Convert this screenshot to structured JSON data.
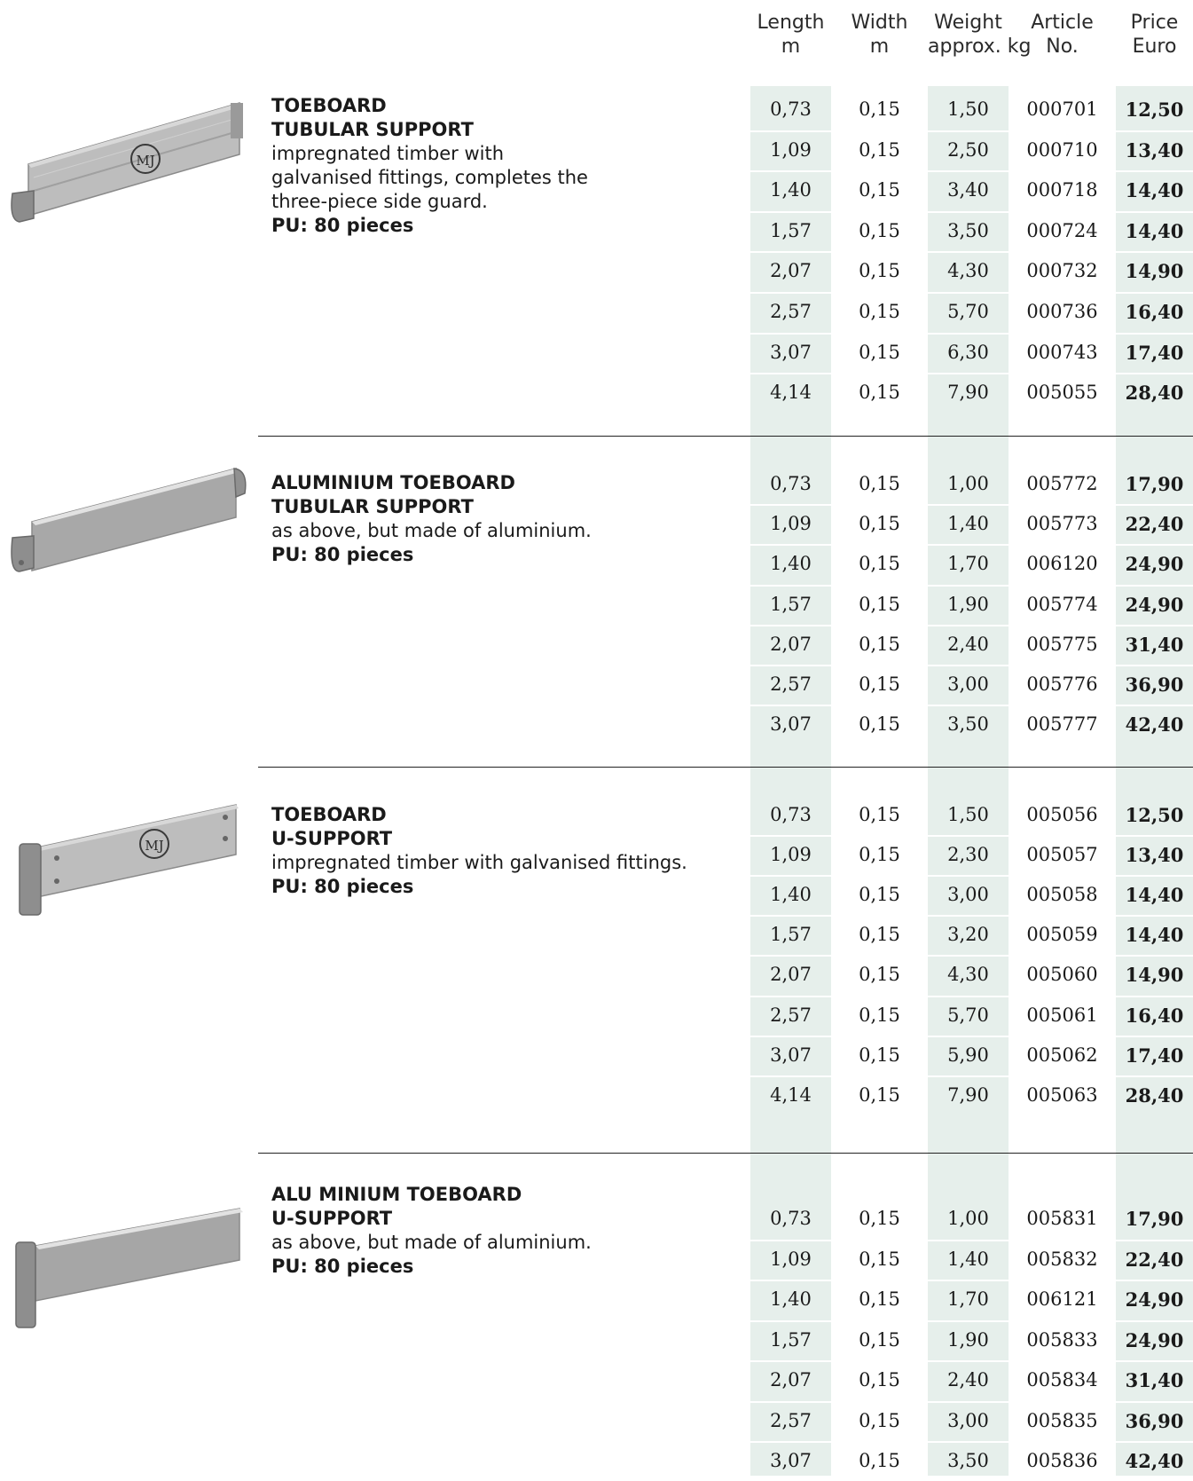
{
  "columns": [
    {
      "line1": "Length",
      "line2": "m"
    },
    {
      "line1": "Width",
      "line2": "m"
    },
    {
      "line1": "Weight",
      "line2": "approx. kg"
    },
    {
      "line1": "Article",
      "line2": "No."
    },
    {
      "line1": "Price",
      "line2": "Euro"
    }
  ],
  "products": [
    {
      "title1": "TOEBOARD",
      "title2": "TUBULAR SUPPORT",
      "desc": "impregnated timber with galvanised fittings, completes the three-piece side guard.",
      "pu": "PU: 80 pieces",
      "logo": "MJ",
      "rows": [
        [
          "0,73",
          "0,15",
          "1,50",
          "000701",
          "12,50"
        ],
        [
          "1,09",
          "0,15",
          "2,50",
          "000710",
          "13,40"
        ],
        [
          "1,40",
          "0,15",
          "3,40",
          "000718",
          "14,40"
        ],
        [
          "1,57",
          "0,15",
          "3,50",
          "000724",
          "14,40"
        ],
        [
          "2,07",
          "0,15",
          "4,30",
          "000732",
          "14,90"
        ],
        [
          "2,57",
          "0,15",
          "5,70",
          "000736",
          "16,40"
        ],
        [
          "3,07",
          "0,15",
          "6,30",
          "000743",
          "17,40"
        ],
        [
          "4,14",
          "0,15",
          "7,90",
          "005055",
          "28,40"
        ]
      ]
    },
    {
      "title1": "ALUMINIUM TOEBOARD",
      "title2": "TUBULAR SUPPORT",
      "desc": "as above, but made of aluminium.",
      "pu": "PU: 80 pieces",
      "rows": [
        [
          "0,73",
          "0,15",
          "1,00",
          "005772",
          "17,90"
        ],
        [
          "1,09",
          "0,15",
          "1,40",
          "005773",
          "22,40"
        ],
        [
          "1,40",
          "0,15",
          "1,70",
          "006120",
          "24,90"
        ],
        [
          "1,57",
          "0,15",
          "1,90",
          "005774",
          "24,90"
        ],
        [
          "2,07",
          "0,15",
          "2,40",
          "005775",
          "31,40"
        ],
        [
          "2,57",
          "0,15",
          "3,00",
          "005776",
          "36,90"
        ],
        [
          "3,07",
          "0,15",
          "3,50",
          "005777",
          "42,40"
        ]
      ]
    },
    {
      "title1": "TOEBOARD",
      "title2": "U-SUPPORT",
      "desc": "impregnated timber with galvanised fittings.",
      "pu": "PU: 80 pieces",
      "logo": "MJ",
      "rows": [
        [
          "0,73",
          "0,15",
          "1,50",
          "005056",
          "12,50"
        ],
        [
          "1,09",
          "0,15",
          "2,30",
          "005057",
          "13,40"
        ],
        [
          "1,40",
          "0,15",
          "3,00",
          "005058",
          "14,40"
        ],
        [
          "1,57",
          "0,15",
          "3,20",
          "005059",
          "14,40"
        ],
        [
          "2,07",
          "0,15",
          "4,30",
          "005060",
          "14,90"
        ],
        [
          "2,57",
          "0,15",
          "5,70",
          "005061",
          "16,40"
        ],
        [
          "3,07",
          "0,15",
          "5,90",
          "005062",
          "17,40"
        ],
        [
          "4,14",
          "0,15",
          "7,90",
          "005063",
          "28,40"
        ]
      ]
    },
    {
      "title1": "ALU MINIUM TOEBOARD",
      "title2": "U-SUPPORT",
      "desc": "as above, but made of aluminium.",
      "pu": "PU: 80 pieces",
      "rows": [
        [
          "0,73",
          "0,15",
          "1,00",
          "005831",
          "17,90"
        ],
        [
          "1,09",
          "0,15",
          "1,40",
          "005832",
          "22,40"
        ],
        [
          "1,40",
          "0,15",
          "1,70",
          "006121",
          "24,90"
        ],
        [
          "1,57",
          "0,15",
          "1,90",
          "005833",
          "24,90"
        ],
        [
          "2,07",
          "0,15",
          "2,40",
          "005834",
          "31,40"
        ],
        [
          "2,57",
          "0,15",
          "3,00",
          "005835",
          "36,90"
        ],
        [
          "3,07",
          "0,15",
          "3,50",
          "005836",
          "42,40"
        ]
      ]
    }
  ],
  "colors": {
    "column_tint": "#e6efeb",
    "wood": "#b9b9b9",
    "aluminium": "#a6a6a6"
  }
}
